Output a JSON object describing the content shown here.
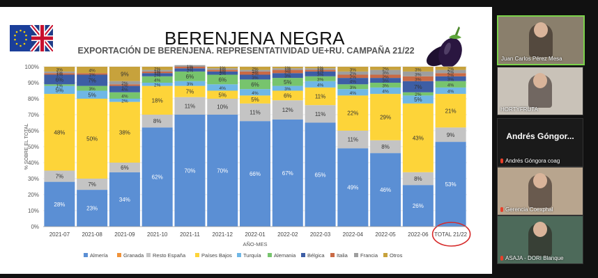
{
  "slide": {
    "title": "BERENJENA NEGRA",
    "flag_icon": "eu-uk-flag-icon",
    "eggplant_icon": "eggplant-icon"
  },
  "chart_data": {
    "type": "bar",
    "stacked": true,
    "title": "EXPORTACIÓN DE BERENJENA. REPRESENTATIVIDAD UE+RU. CAMPAÑA 21/22",
    "xlabel": "AÑO-MES",
    "ylabel": "% SOBRE EL TOTAL",
    "ylim": [
      0,
      100
    ],
    "yticks": [
      "0%",
      "10%",
      "20%",
      "30%",
      "40%",
      "50%",
      "60%",
      "70%",
      "80%",
      "90%",
      "100%"
    ],
    "grid": true,
    "legend_position": "bottom",
    "categories": [
      "2021-07",
      "2021-08",
      "2021-09",
      "2021-10",
      "2021-11",
      "2021-12",
      "2022-01",
      "2022-02",
      "2022-03",
      "2022-04",
      "2022-05",
      "2022-06",
      "TOTAL 21/22"
    ],
    "highlight_category": "TOTAL 21/22",
    "series": [
      {
        "name": "Almería",
        "color": "#5b8fd4",
        "values": [
          28,
          23,
          34,
          62,
          70,
          70,
          66,
          67,
          65,
          49,
          46,
          26,
          53
        ]
      },
      {
        "name": "Granada",
        "color": "#f0933a",
        "values": [
          0,
          0,
          0,
          0,
          0,
          0,
          0,
          0,
          0,
          0,
          0,
          0,
          0
        ]
      },
      {
        "name": "Resto España",
        "color": "#c4c4c4",
        "values": [
          7,
          7,
          6,
          8,
          11,
          10,
          11,
          12,
          11,
          11,
          8,
          8,
          9
        ]
      },
      {
        "name": "Países Bajos",
        "color": "#fdd439",
        "values": [
          48,
          50,
          38,
          18,
          7,
          5,
          5,
          6,
          11,
          22,
          29,
          43,
          21
        ]
      },
      {
        "name": "Turquía",
        "color": "#6fb7e6",
        "values": [
          5,
          5,
          2,
          2,
          3,
          4,
          4,
          3,
          4,
          4,
          4,
          5,
          4
        ]
      },
      {
        "name": "Alemania",
        "color": "#77c46d",
        "values": [
          1,
          3,
          4,
          4,
          6,
          6,
          6,
          5,
          3,
          3,
          3,
          2,
          4
        ]
      },
      {
        "name": "Bélgica",
        "color": "#3d5ea5",
        "values": [
          6,
          7,
          4,
          2,
          2,
          2,
          3,
          3,
          3,
          4,
          3,
          7,
          3
        ]
      },
      {
        "name": "Italia",
        "color": "#c96a45",
        "values": [
          1,
          1,
          1,
          1,
          1,
          1,
          2,
          2,
          1,
          2,
          2,
          3,
          2
        ]
      },
      {
        "name": "Francia",
        "color": "#9e9e9e",
        "values": [
          1,
          0,
          2,
          1,
          1,
          1,
          1,
          1,
          1,
          2,
          3,
          3,
          2
        ]
      },
      {
        "name": "Otros",
        "color": "#c7a23c",
        "values": [
          3,
          4,
          9,
          2,
          0,
          1,
          2,
          1,
          1,
          3,
          2,
          3,
          2
        ]
      }
    ],
    "data_labels": [
      {
        "category": "2021-07",
        "labels": [
          "28%",
          "0%",
          "7%",
          "48%",
          "5%",
          "1%",
          "6%",
          "1%",
          "1%",
          "3%"
        ]
      },
      {
        "category": "2021-08",
        "labels": [
          "23%",
          "0%",
          "7%",
          "50%",
          "5%",
          "3%",
          "7%",
          "1%",
          "",
          "4%"
        ]
      },
      {
        "category": "2021-09",
        "labels": [
          "34%",
          "0%",
          "6%",
          "38%",
          "2%",
          "4%",
          "4%",
          "1%",
          "2%",
          "9%"
        ]
      },
      {
        "category": "2021-10",
        "labels": [
          "62%",
          "0%",
          "8%",
          "18%",
          "2%",
          "4%",
          "2%",
          "1%",
          "1%",
          "2%"
        ]
      },
      {
        "category": "2021-11",
        "labels": [
          "70%",
          "0%",
          "11%",
          "7%",
          "3%",
          "6%",
          "2%",
          "1%",
          "1%",
          ""
        ]
      },
      {
        "category": "2021-12",
        "labels": [
          "70%",
          "0%",
          "10%",
          "5%",
          "4%",
          "6%",
          "2%",
          "1%",
          "1%",
          "1%"
        ]
      },
      {
        "category": "2022-01",
        "labels": [
          "66%",
          "0%",
          "11%",
          "5%",
          "4%",
          "6%",
          "3%",
          "2%",
          "1%",
          "2%"
        ]
      },
      {
        "category": "2022-02",
        "labels": [
          "67%",
          "0%",
          "12%",
          "6%",
          "3%",
          "5%",
          "3%",
          "2%",
          "1%",
          "1%"
        ]
      },
      {
        "category": "2022-03",
        "labels": [
          "65%",
          "0%",
          "11%",
          "11%",
          "4%",
          "3%",
          "3%",
          "1%",
          "1%",
          "1%"
        ]
      },
      {
        "category": "2022-04",
        "labels": [
          "49%",
          "0%",
          "11%",
          "22%",
          "4%",
          "3%",
          "4%",
          "2%",
          "2%",
          "3%"
        ]
      },
      {
        "category": "2022-05",
        "labels": [
          "46%",
          "0%",
          "8%",
          "29%",
          "4%",
          "3%",
          "3%",
          "2%",
          "3%",
          "2%"
        ]
      },
      {
        "category": "2022-06",
        "labels": [
          "26%",
          "0%",
          "8%",
          "43%",
          "5%",
          "2%",
          "7%",
          "3%",
          "3%",
          "3%"
        ]
      },
      {
        "category": "TOTAL 21/22",
        "labels": [
          "53%",
          "0%",
          "9%",
          "21%",
          "4%",
          "4%",
          "3%",
          "2%",
          "2%",
          "2%"
        ]
      }
    ]
  },
  "participants": [
    {
      "name": "Juan Carlos Pérez Mesa",
      "active": true,
      "bg": "#8a7f6c",
      "muted": false
    },
    {
      "name": "HORTYFRUTA",
      "active": false,
      "bg": "#c9c2b8",
      "muted": false
    },
    {
      "name": "Andrés Góngora coag",
      "display": "Andrés Góngor...",
      "active": false,
      "bg": "#1a1a1a",
      "muted": true
    },
    {
      "name": "Gerencia Coexphal",
      "active": false,
      "bg": "#b8a58e",
      "muted": true
    },
    {
      "name": "ASAJA - DORI Blanque",
      "active": false,
      "bg": "#4d6a5a",
      "muted": true
    }
  ]
}
